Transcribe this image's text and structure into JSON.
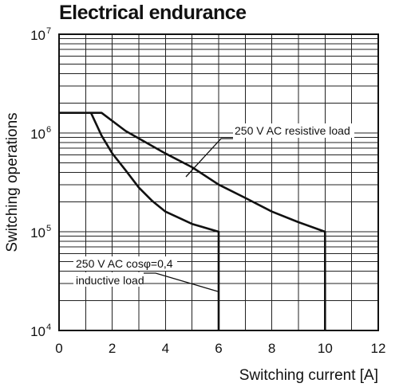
{
  "chart_data": {
    "type": "line",
    "title": "Electrical endurance",
    "xlabel": "Switching current [A]",
    "ylabel": "Switching operations",
    "xlim": [
      0,
      12
    ],
    "ylim": [
      10000,
      10000000
    ],
    "y_scale": "log",
    "grid": true,
    "x_ticks": [
      "0",
      "2",
      "4",
      "6",
      "8",
      "10",
      "12"
    ],
    "y_ticks": [
      {
        "base": "10",
        "exp": "4"
      },
      {
        "base": "10",
        "exp": "5"
      },
      {
        "base": "10",
        "exp": "6"
      },
      {
        "base": "10",
        "exp": "7"
      }
    ],
    "series": [
      {
        "name": "250 V AC resistive load",
        "points": [
          [
            0,
            1600000
          ],
          [
            1.6,
            1600000
          ],
          [
            2.5,
            1050000
          ],
          [
            4,
            620000
          ],
          [
            5,
            450000
          ],
          [
            6,
            300000
          ],
          [
            7,
            220000
          ],
          [
            8,
            160000
          ],
          [
            9,
            125000
          ],
          [
            10,
            100000
          ],
          [
            10,
            10000
          ]
        ]
      },
      {
        "name": "250 V AC cosφ=0,4 inductive load",
        "points": [
          [
            1.2,
            1600000
          ],
          [
            1.6,
            940000
          ],
          [
            2,
            620000
          ],
          [
            2.5,
            420000
          ],
          [
            3,
            280000
          ],
          [
            3.5,
            205000
          ],
          [
            4,
            160000
          ],
          [
            5,
            120000
          ],
          [
            6,
            100000
          ],
          [
            6,
            10000
          ]
        ]
      }
    ],
    "annotations": [
      {
        "lines": [
          "250 V AC resistive load"
        ]
      },
      {
        "lines": [
          "250 V AC cosφ=0,4",
          "inductive load"
        ]
      }
    ]
  }
}
